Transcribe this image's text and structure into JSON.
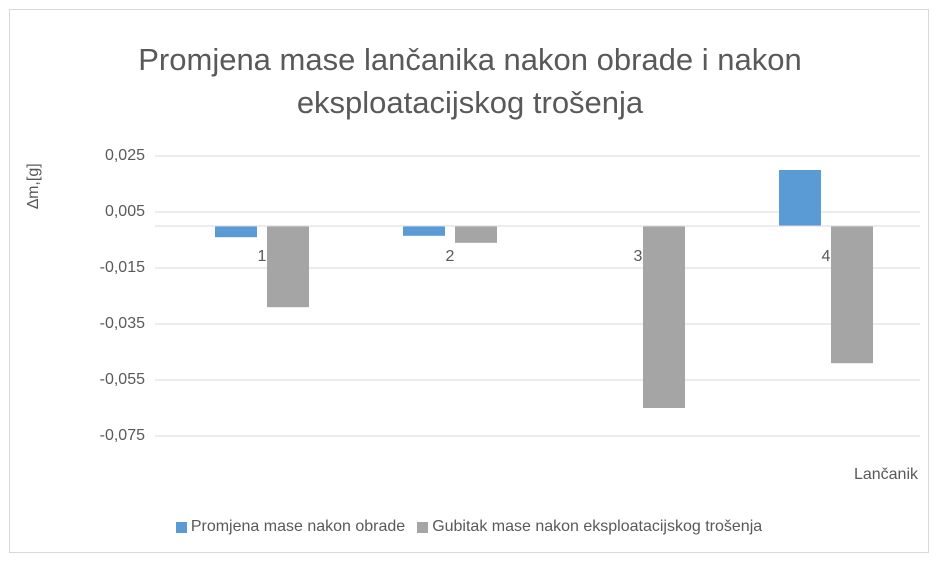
{
  "chart_data": {
    "type": "bar",
    "title": "Promjena mase lančanika nakon obrade i nakon eksploatacijskog trošenja",
    "y_label": "∆m,[g]",
    "x_label": "Lančanik",
    "categories": [
      "1",
      "2",
      "3",
      "4"
    ],
    "series": [
      {
        "name": "Promjena mase nakon obrade",
        "color": "#5b9bd5",
        "values": [
          -0.004,
          -0.0035,
          0,
          0.02
        ]
      },
      {
        "name": "Gubitak mase nakon eksploatacijskog trošenja",
        "color": "#a5a5a5",
        "values": [
          -0.029,
          -0.006,
          -0.065,
          -0.049
        ]
      }
    ],
    "ylim": [
      -0.075,
      0.025
    ],
    "yticks": [
      {
        "value": -0.075,
        "label": "-0,075"
      },
      {
        "value": -0.055,
        "label": "-0,055"
      },
      {
        "value": -0.035,
        "label": "-0,035"
      },
      {
        "value": -0.015,
        "label": "-0,015"
      },
      {
        "value": 0.005,
        "label": "0,005"
      },
      {
        "value": 0.025,
        "label": "0,025"
      }
    ],
    "grid": true,
    "legend": "bottom"
  }
}
